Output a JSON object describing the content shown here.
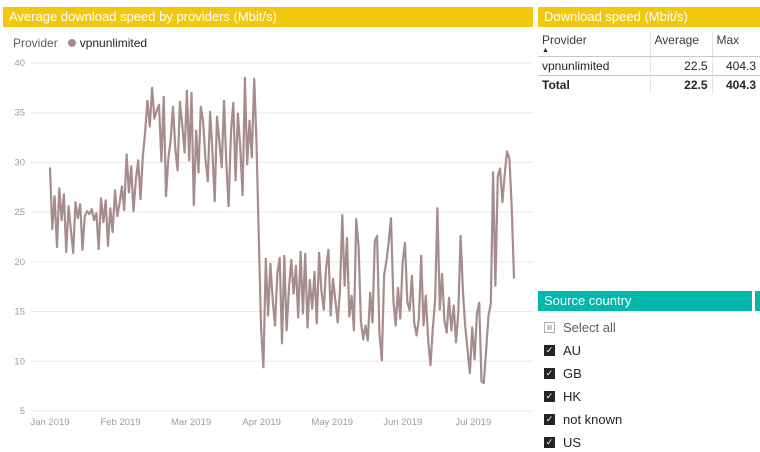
{
  "colors": {
    "accent_yellow": "#F2C80F",
    "accent_teal": "#01B8AA",
    "line": "#A78C8E",
    "text_dark": "#252423",
    "text_gray": "#605E5C",
    "axis_gray": "#9D9D9D",
    "grid": "#E8E8E8"
  },
  "chart": {
    "title": "Average download speed by providers (Mbit/s)",
    "legend_label": "Provider",
    "series_name": "vpnunlimited"
  },
  "chart_data": {
    "type": "line",
    "title": "Average download speed by providers (Mbit/s)",
    "xlabel": "",
    "ylabel": "",
    "ylim": [
      5,
      40
    ],
    "y_ticks": [
      40,
      35,
      30,
      25,
      20,
      15,
      10,
      5
    ],
    "x_labels": [
      "Jan 2019",
      "Feb 2019",
      "Mar 2019",
      "Apr 2019",
      "May 2019",
      "Jun 2019",
      "Jul 2019"
    ],
    "grid": true,
    "legend_position": "top",
    "series": [
      {
        "name": "vpnunlimited",
        "values": [
          29.4,
          23.3,
          26.6,
          21.5,
          27.4,
          24.2,
          26.8,
          21.0,
          25.6,
          23.2,
          20.9,
          26.0,
          24.4,
          25.8,
          21.2,
          24.6,
          25.1,
          24.8,
          25.3,
          24.2,
          24.9,
          21.3,
          26.4,
          24.0,
          26.2,
          21.6,
          25.4,
          23.0,
          27.2,
          24.6,
          25.9,
          27.6,
          25.2,
          30.8,
          27.0,
          29.6,
          25.1,
          28.2,
          30.2,
          26.3,
          30.6,
          33.0,
          36.2,
          33.6,
          37.5,
          34.4,
          35.2,
          35.8,
          30.1,
          36.6,
          26.6,
          30.4,
          32.2,
          35.6,
          31.4,
          29.2,
          36.1,
          33.8,
          31.0,
          37.2,
          30.2,
          37.0,
          25.7,
          33.2,
          29.0,
          35.6,
          34.1,
          30.4,
          28.1,
          35.1,
          31.2,
          26.1,
          34.6,
          32.1,
          29.5,
          36.2,
          30.0,
          25.6,
          33.1,
          36.0,
          28.2,
          34.9,
          31.6,
          26.7,
          38.5,
          29.8,
          34.2,
          30.5,
          38.4,
          32.0,
          22.4,
          13.3,
          9.4,
          20.3,
          14.6,
          19.8,
          16.2,
          13.6,
          18.9,
          20.4,
          11.8,
          20.6,
          13.1,
          17.4,
          20.2,
          16.8,
          19.6,
          14.4,
          21.0,
          14.8,
          20.8,
          13.4,
          18.2,
          15.3,
          19.0,
          13.8,
          20.9,
          17.1,
          15.2,
          19.4,
          21.2,
          14.6,
          18.3,
          16.1,
          13.9,
          17.2,
          24.7,
          17.6,
          22.4,
          14.5,
          16.6,
          13.1,
          24.3,
          21.5,
          14.0,
          12.2,
          13.6,
          12.1,
          16.9,
          13.9,
          22.1,
          22.6,
          12.9,
          10.1,
          18.6,
          20.1,
          22.0,
          24.4,
          16.1,
          13.6,
          17.4,
          14.3,
          19.9,
          21.9,
          16.0,
          15.1,
          18.6,
          13.9,
          12.6,
          14.3,
          20.6,
          13.6,
          16.6,
          12.1,
          9.6,
          13.3,
          16.1,
          25.4,
          15.2,
          18.8,
          14.1,
          12.9,
          16.4,
          13.1,
          15.6,
          11.9,
          14.9,
          22.6,
          16.9,
          13.4,
          11.1,
          8.8,
          13.4,
          10.2,
          14.8,
          15.9,
          8.0,
          7.8,
          11.2,
          14.6,
          15.8,
          29.0,
          17.6,
          28.6,
          29.4,
          26.0,
          28.8,
          31.1,
          30.4,
          25.5,
          18.4
        ]
      }
    ]
  },
  "table": {
    "title": "Download speed (Mbit/s)",
    "columns": [
      "Provider",
      "Average",
      "Max"
    ],
    "sort_column": "Provider",
    "sort_direction": "asc",
    "sort_icon": "▲",
    "rows": [
      [
        "vpnunlimited",
        "22.5",
        "404.3"
      ]
    ],
    "total": [
      "Total",
      "22.5",
      "404.3"
    ]
  },
  "slicer": {
    "title": "Source country",
    "items": [
      {
        "label": "Select all",
        "state": "partial"
      },
      {
        "label": "AU",
        "state": "checked"
      },
      {
        "label": "GB",
        "state": "checked"
      },
      {
        "label": "HK",
        "state": "checked"
      },
      {
        "label": "not known",
        "state": "checked"
      },
      {
        "label": "US",
        "state": "checked"
      }
    ]
  }
}
